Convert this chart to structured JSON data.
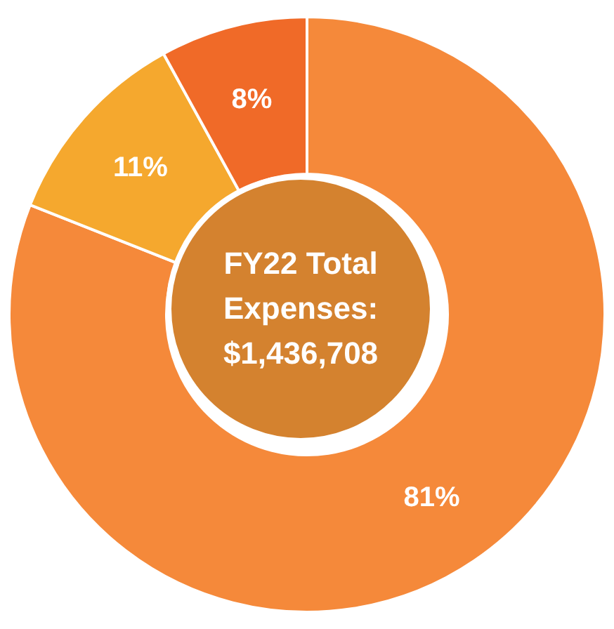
{
  "chart_data": {
    "type": "donut",
    "title": "FY22 Total Expenses: $1,436,708",
    "categories": [
      null,
      null,
      null
    ],
    "values": [
      81,
      11,
      8
    ],
    "colors": [
      "#f5893a",
      "#f5a82e",
      "#f06a28"
    ],
    "value_labels": [
      "81%",
      "11%",
      "8%"
    ]
  }
}
